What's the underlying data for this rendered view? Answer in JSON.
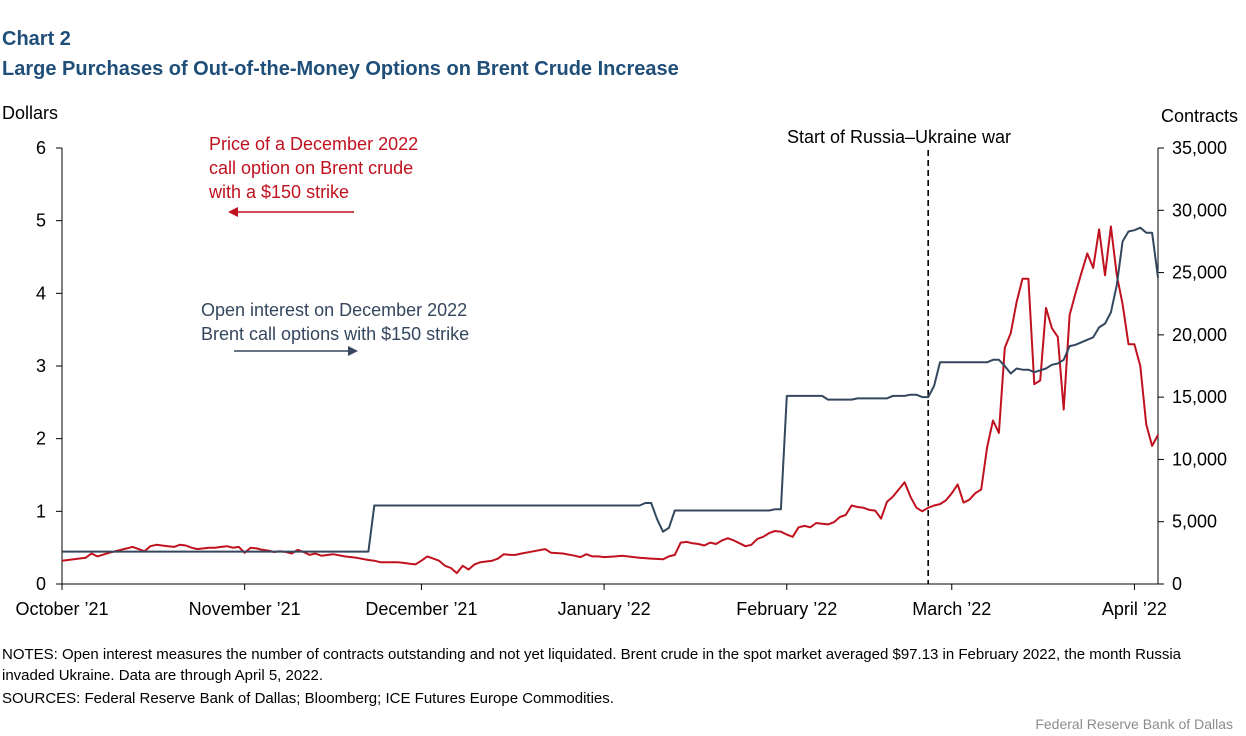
{
  "header": {
    "chart_number": "Chart 2",
    "title": "Large Purchases of Out-of-the-Money Options on Brent Crude Increase"
  },
  "chart_data": {
    "type": "line",
    "title": "Large Purchases of Out-of-the-Money Options on Brent Crude Increase",
    "left_axis": {
      "label": "Dollars",
      "min": 0,
      "max": 6,
      "ticks": [
        0,
        1,
        2,
        3,
        4,
        5,
        6
      ],
      "tick_labels": [
        "0",
        "1",
        "2",
        "3",
        "4",
        "5",
        "6"
      ]
    },
    "right_axis": {
      "label": "Contracts",
      "min": 0,
      "max": 35000,
      "ticks": [
        0,
        5000,
        10000,
        15000,
        20000,
        25000,
        30000,
        35000
      ],
      "tick_labels": [
        "0",
        "5,000",
        "10,000",
        "15,000",
        "20,000",
        "25,000",
        "30,000",
        "35,000"
      ]
    },
    "x_axis": {
      "start_day": 0,
      "end_day": 186,
      "ticks": [
        {
          "day": 0,
          "label": "October ’21"
        },
        {
          "day": 31,
          "label": "November ’21"
        },
        {
          "day": 61,
          "label": "December ’21"
        },
        {
          "day": 92,
          "label": "January ’22"
        },
        {
          "day": 123,
          "label": "February ’22"
        },
        {
          "day": 151,
          "label": "March ’22"
        },
        {
          "day": 182,
          "label": "April ’22"
        }
      ]
    },
    "annotation": {
      "day": 147,
      "label": "Start of Russia–Ukraine  war"
    },
    "legend_price": [
      "Price of a December 2022",
      "call option on Brent crude",
      "with a $150 strike"
    ],
    "legend_oi": [
      "Open interest on December 2022",
      "Brent call options with $150 strike"
    ],
    "colors": {
      "price": "#c0111f",
      "open_interest": "#34475e",
      "axis": "#000000",
      "title": "#1f4e79"
    },
    "series": [
      {
        "name": "Price of a December 2022 call option on Brent crude with a $150 strike",
        "axis": "left",
        "points": [
          [
            0,
            0.32
          ],
          [
            2,
            0.34
          ],
          [
            4,
            0.36
          ],
          [
            5,
            0.42
          ],
          [
            6,
            0.38
          ],
          [
            8,
            0.43
          ],
          [
            10,
            0.47
          ],
          [
            11,
            0.49
          ],
          [
            12,
            0.51
          ],
          [
            13,
            0.48
          ],
          [
            14,
            0.45
          ],
          [
            15,
            0.52
          ],
          [
            16,
            0.54
          ],
          [
            17,
            0.53
          ],
          [
            18,
            0.52
          ],
          [
            19,
            0.51
          ],
          [
            20,
            0.54
          ],
          [
            21,
            0.53
          ],
          [
            22,
            0.5
          ],
          [
            23,
            0.48
          ],
          [
            24,
            0.49
          ],
          [
            25,
            0.5
          ],
          [
            26,
            0.5
          ],
          [
            27,
            0.51
          ],
          [
            28,
            0.52
          ],
          [
            29,
            0.5
          ],
          [
            30,
            0.51
          ],
          [
            31,
            0.43
          ],
          [
            32,
            0.5
          ],
          [
            33,
            0.49
          ],
          [
            34,
            0.47
          ],
          [
            35,
            0.46
          ],
          [
            36,
            0.44
          ],
          [
            37,
            0.45
          ],
          [
            38,
            0.44
          ],
          [
            39,
            0.42
          ],
          [
            40,
            0.47
          ],
          [
            41,
            0.44
          ],
          [
            42,
            0.4
          ],
          [
            43,
            0.42
          ],
          [
            44,
            0.39
          ],
          [
            46,
            0.41
          ],
          [
            48,
            0.38
          ],
          [
            50,
            0.36
          ],
          [
            52,
            0.33
          ],
          [
            53,
            0.32
          ],
          [
            54,
            0.3
          ],
          [
            55,
            0.3
          ],
          [
            57,
            0.3
          ],
          [
            58,
            0.29
          ],
          [
            59,
            0.28
          ],
          [
            60,
            0.27
          ],
          [
            61,
            0.32
          ],
          [
            62,
            0.38
          ],
          [
            63,
            0.35
          ],
          [
            64,
            0.32
          ],
          [
            65,
            0.25
          ],
          [
            66,
            0.22
          ],
          [
            67,
            0.15
          ],
          [
            68,
            0.25
          ],
          [
            69,
            0.2
          ],
          [
            70,
            0.27
          ],
          [
            71,
            0.3
          ],
          [
            73,
            0.32
          ],
          [
            74,
            0.35
          ],
          [
            75,
            0.41
          ],
          [
            76,
            0.4
          ],
          [
            77,
            0.4
          ],
          [
            78,
            0.42
          ],
          [
            80,
            0.45
          ],
          [
            82,
            0.48
          ],
          [
            83,
            0.43
          ],
          [
            85,
            0.42
          ],
          [
            87,
            0.39
          ],
          [
            88,
            0.37
          ],
          [
            89,
            0.41
          ],
          [
            90,
            0.38
          ],
          [
            91,
            0.38
          ],
          [
            92,
            0.37
          ],
          [
            94,
            0.38
          ],
          [
            95,
            0.39
          ],
          [
            96,
            0.38
          ],
          [
            98,
            0.36
          ],
          [
            100,
            0.35
          ],
          [
            102,
            0.34
          ],
          [
            103,
            0.38
          ],
          [
            104,
            0.4
          ],
          [
            105,
            0.57
          ],
          [
            106,
            0.58
          ],
          [
            107,
            0.56
          ],
          [
            108,
            0.55
          ],
          [
            109,
            0.53
          ],
          [
            110,
            0.57
          ],
          [
            111,
            0.55
          ],
          [
            112,
            0.6
          ],
          [
            113,
            0.63
          ],
          [
            114,
            0.6
          ],
          [
            115,
            0.56
          ],
          [
            116,
            0.52
          ],
          [
            117,
            0.54
          ],
          [
            118,
            0.62
          ],
          [
            119,
            0.65
          ],
          [
            120,
            0.7
          ],
          [
            121,
            0.73
          ],
          [
            122,
            0.72
          ],
          [
            123,
            0.68
          ],
          [
            124,
            0.65
          ],
          [
            125,
            0.78
          ],
          [
            126,
            0.8
          ],
          [
            127,
            0.78
          ],
          [
            128,
            0.84
          ],
          [
            129,
            0.83
          ],
          [
            130,
            0.82
          ],
          [
            131,
            0.85
          ],
          [
            132,
            0.92
          ],
          [
            133,
            0.95
          ],
          [
            134,
            1.08
          ],
          [
            135,
            1.06
          ],
          [
            136,
            1.05
          ],
          [
            137,
            1.02
          ],
          [
            138,
            1.01
          ],
          [
            139,
            0.9
          ],
          [
            140,
            1.13
          ],
          [
            141,
            1.2
          ],
          [
            142,
            1.3
          ],
          [
            143,
            1.4
          ],
          [
            144,
            1.2
          ],
          [
            145,
            1.05
          ],
          [
            146,
            1.0
          ],
          [
            147,
            1.05
          ],
          [
            148,
            1.08
          ],
          [
            149,
            1.1
          ],
          [
            150,
            1.15
          ],
          [
            151,
            1.25
          ],
          [
            152,
            1.37
          ],
          [
            153,
            1.12
          ],
          [
            154,
            1.16
          ],
          [
            155,
            1.25
          ],
          [
            156,
            1.3
          ],
          [
            157,
            1.88
          ],
          [
            158,
            2.25
          ],
          [
            159,
            2.08
          ],
          [
            160,
            3.25
          ],
          [
            161,
            3.45
          ],
          [
            162,
            3.88
          ],
          [
            163,
            4.2
          ],
          [
            164,
            4.2
          ],
          [
            165,
            2.75
          ],
          [
            166,
            2.8
          ],
          [
            167,
            3.8
          ],
          [
            168,
            3.52
          ],
          [
            169,
            3.4
          ],
          [
            170,
            2.4
          ],
          [
            171,
            3.7
          ],
          [
            172,
            4.0
          ],
          [
            173,
            4.28
          ],
          [
            174,
            4.55
          ],
          [
            175,
            4.35
          ],
          [
            176,
            4.88
          ],
          [
            177,
            4.25
          ],
          [
            178,
            4.92
          ],
          [
            179,
            4.25
          ],
          [
            180,
            3.85
          ],
          [
            181,
            3.3
          ],
          [
            182,
            3.3
          ],
          [
            183,
            3.0
          ],
          [
            184,
            2.2
          ],
          [
            185,
            1.9
          ],
          [
            186,
            2.05
          ]
        ]
      },
      {
        "name": "Open interest on December 2022 Brent call options with $150 strike",
        "axis": "right",
        "points": [
          [
            0,
            2600
          ],
          [
            52,
            2600
          ],
          [
            53,
            6300
          ],
          [
            98,
            6300
          ],
          [
            99,
            6500
          ],
          [
            100,
            6500
          ],
          [
            101,
            5200
          ],
          [
            102,
            4200
          ],
          [
            103,
            4500
          ],
          [
            104,
            5900
          ],
          [
            105,
            5900
          ],
          [
            120,
            5900
          ],
          [
            121,
            6000
          ],
          [
            122,
            6000
          ],
          [
            123,
            15100
          ],
          [
            129,
            15100
          ],
          [
            130,
            14800
          ],
          [
            134,
            14800
          ],
          [
            135,
            14900
          ],
          [
            140,
            14900
          ],
          [
            141,
            15100
          ],
          [
            143,
            15100
          ],
          [
            144,
            15200
          ],
          [
            145,
            15200
          ],
          [
            146,
            15000
          ],
          [
            147,
            15000
          ],
          [
            148,
            15900
          ],
          [
            149,
            17800
          ],
          [
            157,
            17800
          ],
          [
            158,
            18000
          ],
          [
            159,
            18000
          ],
          [
            160,
            17500
          ],
          [
            161,
            16900
          ],
          [
            162,
            17300
          ],
          [
            163,
            17200
          ],
          [
            164,
            17200
          ],
          [
            165,
            17000
          ],
          [
            167,
            17300
          ],
          [
            168,
            17600
          ],
          [
            169,
            17700
          ],
          [
            170,
            18000
          ],
          [
            171,
            19100
          ],
          [
            172,
            19200
          ],
          [
            173,
            19400
          ],
          [
            175,
            19800
          ],
          [
            176,
            20600
          ],
          [
            177,
            20900
          ],
          [
            178,
            21800
          ],
          [
            179,
            24000
          ],
          [
            180,
            27500
          ],
          [
            181,
            28300
          ],
          [
            182,
            28400
          ],
          [
            183,
            28600
          ],
          [
            184,
            28200
          ],
          [
            185,
            28200
          ],
          [
            186,
            24600
          ]
        ]
      }
    ]
  },
  "notes": "NOTES: Open interest measures the number of contracts outstanding and not yet liquidated. Brent crude in the spot market averaged $97.13 in February 2022, the month Russia invaded Ukraine. Data are through April 5, 2022.",
  "sources": "SOURCES: Federal Reserve Bank of Dallas; Bloomberg; ICE Futures Europe Commodities.",
  "footer": "Federal Reserve  Bank of Dallas"
}
